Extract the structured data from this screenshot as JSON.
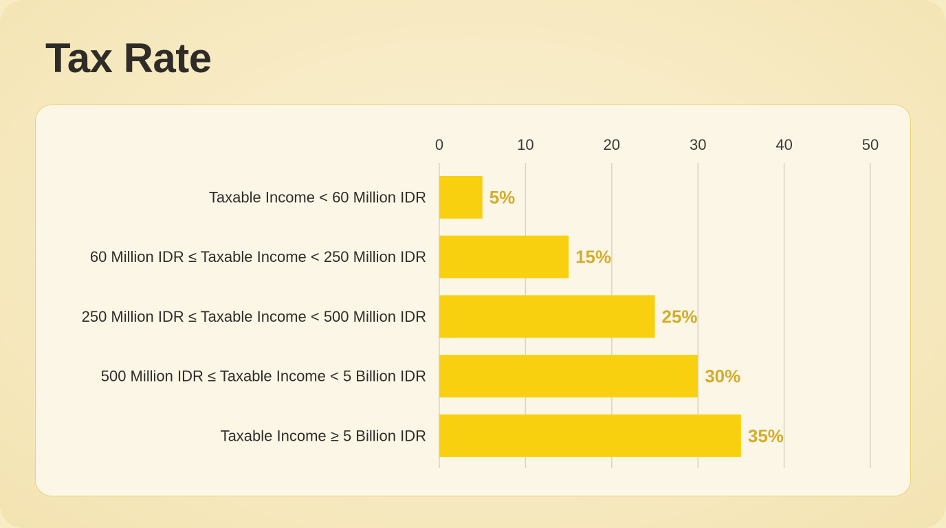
{
  "title": "Tax Rate",
  "colors": {
    "bar": "#f9d00f",
    "value_label": "#d2ad2c",
    "gridline": "#d9d3c4"
  },
  "chart_data": {
    "type": "bar",
    "orientation": "horizontal",
    "title": "Tax Rate",
    "xlabel": "",
    "ylabel": "",
    "xlim": [
      0,
      50
    ],
    "xticks": [
      0,
      10,
      20,
      30,
      40,
      50
    ],
    "grid": true,
    "categories": [
      "Taxable Income < 60 Million IDR",
      "60 Million IDR ≤ Taxable Income < 250 Million IDR",
      "250 Million IDR ≤ Taxable Income < 500 Million IDR",
      "500 Million IDR ≤ Taxable Income < 5 Billion IDR",
      "Taxable Income ≥ 5 Billion IDR"
    ],
    "values": [
      5,
      15,
      25,
      30,
      35
    ],
    "data_labels": [
      "5%",
      "15%",
      "25%",
      "30%",
      "35%"
    ]
  }
}
